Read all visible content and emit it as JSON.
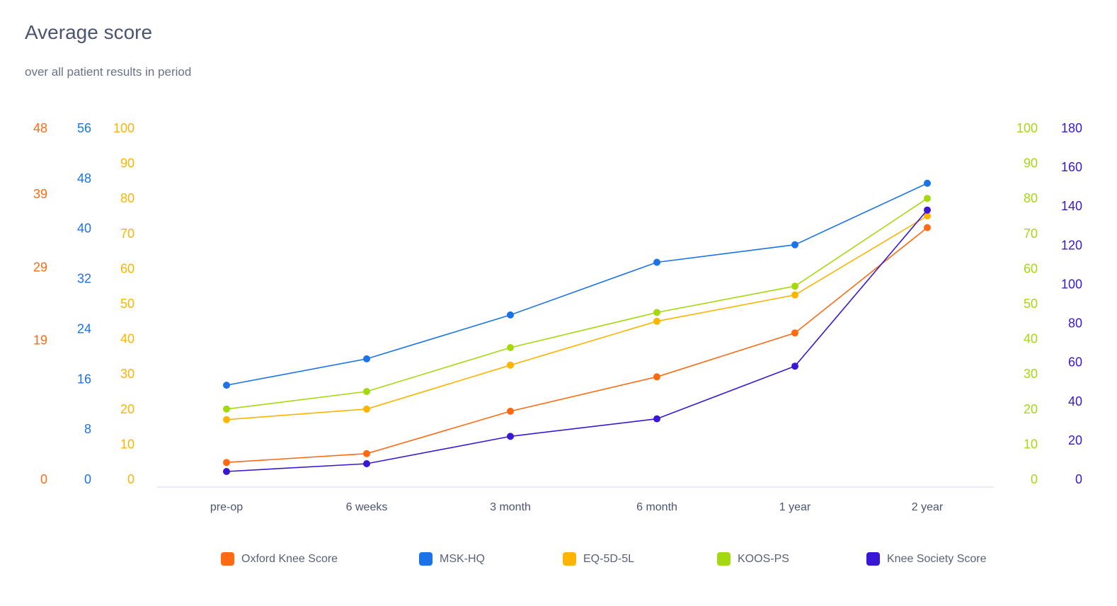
{
  "header": {
    "title": "Average score",
    "subtitle": "over all patient results in period"
  },
  "chart_data": {
    "type": "line",
    "categories": [
      "pre-op",
      "6 weeks",
      "3 month",
      "6 month",
      "1 year",
      "2 year"
    ],
    "axes": [
      {
        "id": "oxford",
        "side": "left",
        "color": "#ff6a13",
        "ticks": [
          "0",
          "19",
          "29",
          "39",
          "48"
        ],
        "tick_values": [
          0,
          19,
          29,
          39,
          48
        ],
        "range": [
          0,
          48
        ]
      },
      {
        "id": "msk",
        "side": "left",
        "color": "#1a73e8",
        "ticks": [
          "0",
          "8",
          "16",
          "24",
          "32",
          "40",
          "48",
          "56"
        ],
        "range": [
          0,
          56
        ]
      },
      {
        "id": "eq5d",
        "side": "left",
        "color": "#ffb400",
        "ticks": [
          "0",
          "10",
          "20",
          "30",
          "40",
          "50",
          "60",
          "70",
          "80",
          "90",
          "100"
        ],
        "range": [
          0,
          100
        ]
      },
      {
        "id": "koos",
        "side": "right",
        "color": "#a5d90f",
        "ticks": [
          "0",
          "10",
          "20",
          "30",
          "40",
          "50",
          "60",
          "70",
          "80",
          "90",
          "100"
        ],
        "range": [
          0,
          100
        ]
      },
      {
        "id": "kss",
        "side": "right",
        "color": "#3a17d6",
        "ticks": [
          "0",
          "20",
          "40",
          "60",
          "80",
          "100",
          "120",
          "140",
          "160",
          "180"
        ],
        "range": [
          0,
          180
        ]
      }
    ],
    "series": [
      {
        "name": "Oxford Knee Score",
        "axis": "oxford",
        "color": "#ff6a13",
        "values": [
          2.3,
          3.5,
          9.3,
          14,
          20,
          34.4
        ]
      },
      {
        "name": "MSK-HQ",
        "axis": "msk",
        "color": "#1a73e8",
        "values": [
          15,
          19.2,
          26.2,
          34.6,
          37.4,
          47.2
        ]
      },
      {
        "name": "EQ-5D-5L",
        "axis": "eq5d",
        "color": "#ffb400",
        "values": [
          17,
          20,
          32.5,
          45,
          52.5,
          75
        ]
      },
      {
        "name": "KOOS-PS",
        "axis": "koos",
        "color": "#a5d90f",
        "values": [
          20,
          25,
          37.5,
          47.5,
          55,
          80
        ]
      },
      {
        "name": "Knee Society Score",
        "axis": "kss",
        "color": "#3a17d6",
        "values": [
          4,
          8,
          22,
          31,
          58,
          138
        ]
      }
    ]
  }
}
